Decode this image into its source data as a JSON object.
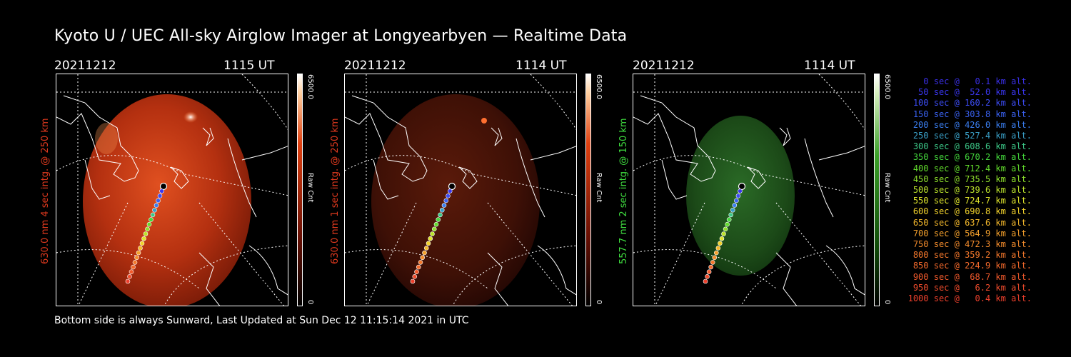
{
  "title": "Kyoto U / UEC All-sky Airglow Imager at Longyearbyen — Realtime Data",
  "footer": "Bottom side is always Sunward, Last Updated at Sun Dec 12 11:15:14 2021 in UTC",
  "colorbar": {
    "max_label": "6500.0",
    "min_label": "0",
    "unit_label": "Raw Cnt"
  },
  "panels": [
    {
      "date": "20211212",
      "time": "1115 UT",
      "side_label": "630.0 nm 4 sec intg. @ 250 km",
      "side_color": "#e0391e",
      "glow_color": "#c83010",
      "bar_top": "#ffffff",
      "bar_mid": "#e04010",
      "bar_bot": "#000000"
    },
    {
      "date": "20211212",
      "time": "1114 UT",
      "side_label": "630.0 nm 1 sec intg. @ 250 km",
      "side_color": "#e0391e",
      "glow_color": "#4a1508",
      "bar_top": "#ffffff",
      "bar_mid": "#e04010",
      "bar_bot": "#000000"
    },
    {
      "date": "20211212",
      "time": "1114 UT",
      "side_label": "557.7 nm 2 sec intg. @ 150 km",
      "side_color": "#3fdc3f",
      "glow_color": "#1d4a1a",
      "bar_top": "#ffffff",
      "bar_mid": "#3aa028",
      "bar_bot": "#000000"
    }
  ],
  "legend": [
    {
      "text": "0 sec @   0.1 km alt.",
      "color": "#3a2fe6"
    },
    {
      "text": "50 sec @  52.0 km alt.",
      "color": "#3a36f0"
    },
    {
      "text": "100 sec @ 160.2 km alt.",
      "color": "#3c4cf4"
    },
    {
      "text": "150 sec @ 303.8 km alt.",
      "color": "#3a62f2"
    },
    {
      "text": "200 sec @ 426.0 km alt.",
      "color": "#3a7ef0"
    },
    {
      "text": "250 sec @ 527.4 km alt.",
      "color": "#3aa0c8"
    },
    {
      "text": "300 sec @ 608.6 km alt.",
      "color": "#3cc888"
    },
    {
      "text": "350 sec @ 670.2 km alt.",
      "color": "#44d83c"
    },
    {
      "text": "400 sec @ 712.4 km alt.",
      "color": "#62dc2c"
    },
    {
      "text": "450 sec @ 735.5 km alt.",
      "color": "#8ee02c"
    },
    {
      "text": "500 sec @ 739.6 km alt.",
      "color": "#bce42c"
    },
    {
      "text": "550 sec @ 724.7 km alt.",
      "color": "#dee42c"
    },
    {
      "text": "600 sec @ 690.8 km alt.",
      "color": "#f2d22c"
    },
    {
      "text": "650 sec @ 637.6 km alt.",
      "color": "#f4b82c"
    },
    {
      "text": "700 sec @ 564.9 km alt.",
      "color": "#f4a02c"
    },
    {
      "text": "750 sec @ 472.3 km alt.",
      "color": "#f48c2c"
    },
    {
      "text": "800 sec @ 359.2 km alt.",
      "color": "#f4782c"
    },
    {
      "text": "850 sec @ 224.9 km alt.",
      "color": "#f46a2c"
    },
    {
      "text": "900 sec @  68.7 km alt.",
      "color": "#f25a2c"
    },
    {
      "text": "950 sec @   6.2 km alt.",
      "color": "#f04c2c"
    },
    {
      "text": "1000 sec @   0.4 km alt.",
      "color": "#ee402c"
    }
  ]
}
